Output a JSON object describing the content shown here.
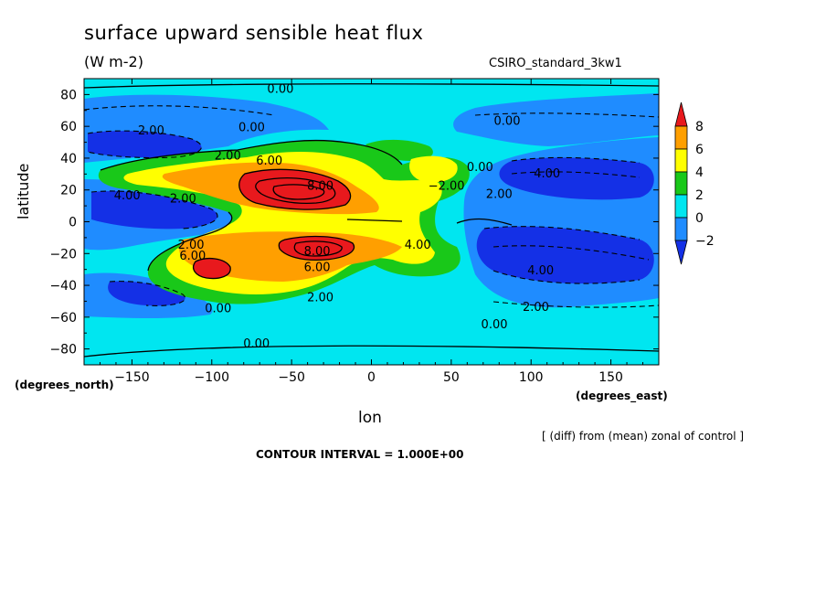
{
  "chart_data": {
    "type": "heatmap",
    "title": "surface upward sensible heat flux",
    "units_label": "(W m-2)",
    "dataset_label": "CSIRO_standard_3kw1",
    "xlabel": "lon",
    "ylabel": "latitude",
    "x_units": "(degrees_east)",
    "y_units": "(degrees_north)",
    "xlim": [
      -180,
      180
    ],
    "ylim": [
      -90,
      90
    ],
    "x_ticks": [
      -150,
      -100,
      -50,
      0,
      50,
      100,
      150
    ],
    "x_tick_labels": [
      "−150",
      "−100",
      "−50",
      "0",
      "50",
      "100",
      "150"
    ],
    "y_ticks": [
      80,
      60,
      40,
      20,
      0,
      -20,
      -40,
      -60,
      -80
    ],
    "y_tick_labels": [
      "80",
      "60",
      "40",
      "20",
      "0",
      "−20",
      "−40",
      "−60",
      "−80"
    ],
    "colorbar": {
      "levels": [
        8,
        6,
        4,
        2,
        0,
        -2
      ],
      "level_labels": [
        "8",
        "6",
        "4",
        "2",
        "0",
        "−2"
      ],
      "colors": [
        "#e8191d",
        "#ff9f00",
        "#ffff00",
        "#19c819",
        "#00e6f0",
        "#1f8cff",
        "#1430e6"
      ]
    },
    "note": "[ (diff) from (mean) zonal of control ]",
    "contour_interval": "CONTOUR INTERVAL = 1.000E+00",
    "contour_labels": [
      {
        "text": "0.00",
        "lon": -57,
        "lat": 81
      },
      {
        "text": "0.00",
        "lon": -75,
        "lat": 57
      },
      {
        "text": "2.00",
        "lon": -138,
        "lat": 55
      },
      {
        "text": "2.00",
        "lon": -90,
        "lat": 39
      },
      {
        "text": "6.00",
        "lon": -64,
        "lat": 36
      },
      {
        "text": "8.00",
        "lon": -32,
        "lat": 20
      },
      {
        "text": "4.00",
        "lon": -153,
        "lat": 14
      },
      {
        "text": "2.00",
        "lon": -118,
        "lat": 12
      },
      {
        "text": "0.00",
        "lon": 68,
        "lat": 32
      },
      {
        "text": "0.00",
        "lon": 85,
        "lat": 61
      },
      {
        "text": "4.00",
        "lon": 110,
        "lat": 28
      },
      {
        "text": "2.00",
        "lon": 80,
        "lat": 15
      },
      {
        "text": "−2.00",
        "lon": 47,
        "lat": 20
      },
      {
        "text": "2.00",
        "lon": -113,
        "lat": -17
      },
      {
        "text": "6.00",
        "lon": -112,
        "lat": -24
      },
      {
        "text": "8.00",
        "lon": -34,
        "lat": -21
      },
      {
        "text": "4.00",
        "lon": 29,
        "lat": -17
      },
      {
        "text": "6.00",
        "lon": -34,
        "lat": -31
      },
      {
        "text": "2.00",
        "lon": -32,
        "lat": -50
      },
      {
        "text": "0.00",
        "lon": -96,
        "lat": -57
      },
      {
        "text": "4.00",
        "lon": 106,
        "lat": -33
      },
      {
        "text": "2.00",
        "lon": 103,
        "lat": -56
      },
      {
        "text": "0.00",
        "lon": 77,
        "lat": -67
      },
      {
        "text": "0.00",
        "lon": -72,
        "lat": -79
      }
    ]
  }
}
